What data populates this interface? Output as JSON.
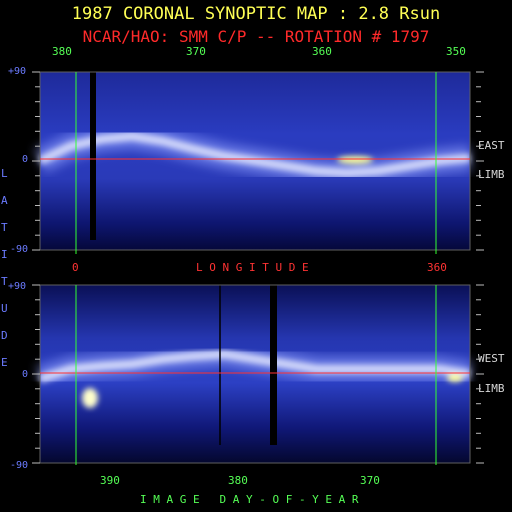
{
  "header": {
    "title": "1987 CORONAL SYNOPTIC MAP : 2.8 Rsun",
    "subtitle": "NCAR/HAO: SMM C/P -- ROTATION # 1797"
  },
  "top_panel": {
    "top_axis_ticks": [
      "380",
      "370",
      "360",
      "350"
    ],
    "y_ticks": [
      "+90",
      "0",
      "-90"
    ],
    "limb_label": [
      "EAST",
      "LIMB"
    ],
    "bottom_axis_ticks": [
      "0",
      "360"
    ],
    "bottom_axis_label": "L O N G I T U D E"
  },
  "bottom_panel": {
    "y_ticks": [
      "+90",
      "0",
      "-90"
    ],
    "limb_label": [
      "WEST",
      "LIMB"
    ],
    "bottom_axis_ticks": [
      "390",
      "380",
      "370"
    ],
    "bottom_axis_label": "I M A G E   D A Y - O F - Y E A R"
  },
  "y_axis_label_letters": [
    "L",
    "A",
    "T",
    "I",
    "T",
    "U",
    "D",
    "E"
  ],
  "colors": {
    "title": "#ffff55",
    "subtitle": "#ff2a2a",
    "grid_green": "#33ff33",
    "equator_red": "#ff3030",
    "axis_blue": "#6b7bff"
  },
  "chart_data": [
    {
      "type": "heatmap",
      "title": "1987 CORONAL SYNOPTIC MAP : 2.8 Rsun",
      "subtitle": "NCAR/HAO: SMM C/P -- ROTATION # 1797",
      "panel": "EAST LIMB",
      "xlabel": "L O N G I T U D E",
      "x_top_ticks": [
        380,
        370,
        360,
        350
      ],
      "x_bottom_ticks": [
        0,
        360
      ],
      "ylabel": "LATITUDE",
      "ylim": [
        -90,
        90
      ],
      "y_ticks": [
        "+90",
        "0",
        "-90"
      ],
      "markers": {
        "green_lines_longitude": [
          0,
          360
        ],
        "red_line_latitude": 0
      },
      "bright_band_latitude_deg": [
        0,
        15,
        22,
        25,
        20,
        12,
        5,
        0,
        -5,
        -10,
        -12,
        -10,
        -5,
        0,
        3
      ]
    },
    {
      "type": "heatmap",
      "panel": "WEST LIMB",
      "xlabel": "I M A G E   D A Y - O F - Y E A R",
      "x_bottom_ticks": [
        390,
        380,
        370
      ],
      "ylabel": "LATITUDE",
      "ylim": [
        -90,
        90
      ],
      "y_ticks": [
        "+90",
        "0",
        "-90"
      ],
      "markers": {
        "green_lines_day": [
          393,
          360
        ],
        "red_line_latitude": 0
      },
      "bright_band_latitude_deg": [
        -5,
        5,
        8,
        10,
        15,
        18,
        20,
        15,
        10,
        5,
        5,
        5,
        5,
        5,
        0
      ]
    }
  ]
}
